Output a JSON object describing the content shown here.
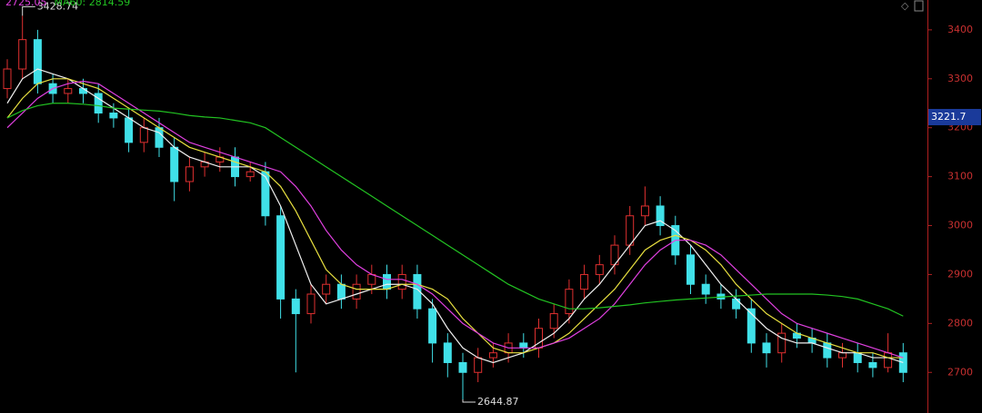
{
  "chart_data": {
    "type": "candlestick",
    "legend": [
      {
        "text": "2725.05",
        "color": "#e040e0"
      },
      {
        "text": "MA60: 2814.59",
        "color": "#22c322"
      }
    ],
    "up_color": "#e03030",
    "down_color": "#40e0e8",
    "open": [
      3280,
      3320,
      3380,
      3290,
      3270,
      3280,
      3270,
      3230,
      3220,
      3170,
      3200,
      3160,
      3090,
      3120,
      3130,
      3140,
      3100,
      3110,
      3020,
      2850,
      2820,
      2860,
      2880,
      2850,
      2880,
      2900,
      2870,
      2900,
      2830,
      2760,
      2720,
      2700,
      2730,
      2740,
      2760,
      2750,
      2790,
      2820,
      2870,
      2900,
      2920,
      2960,
      3020,
      3040,
      3000,
      2940,
      2880,
      2860,
      2850,
      2830,
      2760,
      2740,
      2780,
      2770,
      2760,
      2730,
      2740,
      2720,
      2710,
      2740
    ],
    "high": [
      3340,
      3428.74,
      3400,
      3310,
      3300,
      3300,
      3290,
      3250,
      3240,
      3220,
      3220,
      3180,
      3140,
      3150,
      3160,
      3160,
      3130,
      3130,
      3040,
      2870,
      2880,
      2900,
      2900,
      2900,
      2920,
      2920,
      2920,
      2920,
      2850,
      2780,
      2740,
      2750,
      2760,
      2780,
      2780,
      2810,
      2840,
      2890,
      2920,
      2940,
      2980,
      3040,
      3080,
      3060,
      3020,
      2960,
      2900,
      2880,
      2870,
      2850,
      2780,
      2800,
      2800,
      2790,
      2780,
      2760,
      2760,
      2740,
      2780,
      2760
    ],
    "low": [
      3260,
      3300,
      3270,
      3250,
      3250,
      3250,
      3210,
      3200,
      3150,
      3150,
      3140,
      3050,
      3070,
      3100,
      3110,
      3080,
      3090,
      3000,
      2810,
      2700,
      2800,
      2840,
      2830,
      2830,
      2860,
      2850,
      2850,
      2810,
      2720,
      2690,
      2644.87,
      2680,
      2710,
      2720,
      2730,
      2730,
      2770,
      2800,
      2850,
      2880,
      2900,
      2940,
      3000,
      2980,
      2920,
      2860,
      2840,
      2830,
      2810,
      2740,
      2710,
      2720,
      2750,
      2740,
      2710,
      2710,
      2700,
      2690,
      2700,
      2680
    ],
    "close": [
      3320,
      3380,
      3290,
      3270,
      3280,
      3270,
      3230,
      3220,
      3170,
      3200,
      3160,
      3090,
      3120,
      3130,
      3140,
      3100,
      3110,
      3020,
      2850,
      2820,
      2860,
      2880,
      2850,
      2880,
      2900,
      2870,
      2900,
      2830,
      2760,
      2720,
      2700,
      2730,
      2740,
      2760,
      2750,
      2790,
      2820,
      2870,
      2900,
      2920,
      2960,
      3020,
      3040,
      3000,
      2940,
      2880,
      2860,
      2850,
      2830,
      2760,
      2740,
      2780,
      2770,
      2760,
      2730,
      2740,
      2720,
      2710,
      2740,
      2700
    ],
    "series": [
      {
        "color": "#f0f0f0",
        "values": [
          3250,
          3300,
          3320,
          3310,
          3300,
          3280,
          3260,
          3240,
          3220,
          3200,
          3190,
          3160,
          3140,
          3130,
          3120,
          3120,
          3120,
          3100,
          3040,
          2960,
          2880,
          2840,
          2850,
          2860,
          2870,
          2880,
          2880,
          2870,
          2840,
          2790,
          2750,
          2730,
          2720,
          2730,
          2740,
          2760,
          2780,
          2810,
          2850,
          2880,
          2920,
          2960,
          3000,
          3010,
          2990,
          2960,
          2920,
          2880,
          2850,
          2820,
          2790,
          2770,
          2760,
          2760,
          2750,
          2740,
          2740,
          2730,
          2730,
          2720
        ]
      },
      {
        "color": "#e8e040",
        "values": [
          3220,
          3260,
          3290,
          3300,
          3300,
          3290,
          3280,
          3260,
          3240,
          3220,
          3200,
          3180,
          3160,
          3150,
          3140,
          3130,
          3120,
          3110,
          3080,
          3030,
          2970,
          2910,
          2880,
          2870,
          2870,
          2870,
          2880,
          2880,
          2870,
          2850,
          2810,
          2780,
          2750,
          2740,
          2740,
          2750,
          2760,
          2780,
          2810,
          2840,
          2870,
          2910,
          2950,
          2970,
          2980,
          2970,
          2950,
          2920,
          2880,
          2850,
          2820,
          2800,
          2780,
          2770,
          2760,
          2750,
          2740,
          2740,
          2730,
          2730
        ]
      },
      {
        "color": "#e040e0",
        "values": [
          3200,
          3230,
          3260,
          3280,
          3290,
          3295,
          3290,
          3270,
          3250,
          3230,
          3210,
          3190,
          3170,
          3160,
          3150,
          3140,
          3130,
          3120,
          3110,
          3080,
          3040,
          2990,
          2950,
          2920,
          2900,
          2890,
          2890,
          2880,
          2860,
          2830,
          2800,
          2780,
          2760,
          2750,
          2750,
          2750,
          2760,
          2770,
          2790,
          2810,
          2840,
          2880,
          2920,
          2950,
          2970,
          2970,
          2960,
          2940,
          2910,
          2880,
          2850,
          2820,
          2800,
          2790,
          2780,
          2770,
          2760,
          2750,
          2740,
          2730
        ]
      },
      {
        "color": "#22c322",
        "values": [
          3220,
          3235,
          3245,
          3250,
          3250,
          3248,
          3245,
          3240,
          3238,
          3236,
          3234,
          3230,
          3225,
          3222,
          3220,
          3215,
          3210,
          3200,
          3180,
          3160,
          3140,
          3120,
          3100,
          3080,
          3060,
          3040,
          3020,
          3000,
          2980,
          2960,
          2940,
          2920,
          2900,
          2880,
          2865,
          2850,
          2840,
          2830,
          2830,
          2832,
          2835,
          2838,
          2842,
          2845,
          2848,
          2850,
          2852,
          2854,
          2856,
          2858,
          2860,
          2860,
          2860,
          2860,
          2858,
          2855,
          2850,
          2840,
          2830,
          2815
        ]
      }
    ],
    "price_marker": 3221.7,
    "ylim": [
      2617,
      3461
    ],
    "yticks": [
      2700,
      2800,
      2900,
      3000,
      3100,
      3200,
      3300,
      3400
    ]
  }
}
